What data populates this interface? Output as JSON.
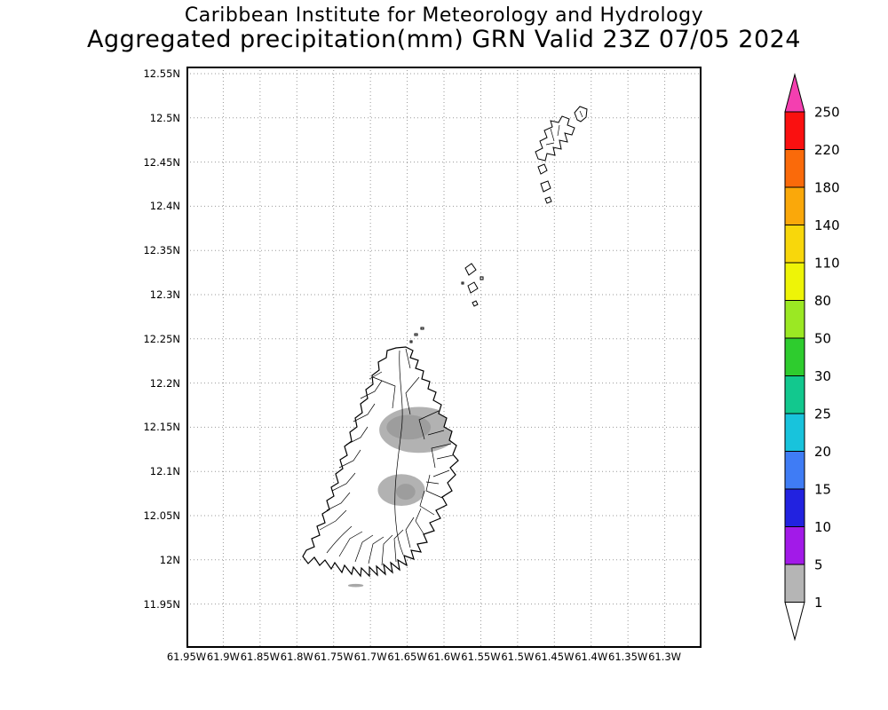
{
  "title": {
    "line1": "Caribbean Institute for Meteorology and Hydrology",
    "line2": "Aggregated precipitation(mm) GRN Valid 23Z 07/05 2024"
  },
  "map": {
    "y_axis_labels": [
      "12.55N",
      "12.5N",
      "12.45N",
      "12.4N",
      "12.35N",
      "12.3N",
      "12.25N",
      "12.2N",
      "12.15N",
      "12.1N",
      "12.05N",
      "12N",
      "11.95N"
    ],
    "x_axis_labels": [
      "61.95W",
      "61.9W",
      "61.85W",
      "61.8W",
      "61.75W",
      "61.7W",
      "61.65W",
      "61.6W",
      "61.55W",
      "61.5W",
      "61.45W",
      "61.4W",
      "61.35W",
      "61.3W"
    ],
    "grid_color": "#999999",
    "frame_color": "#000000",
    "land_color": "#ffffff",
    "coast_color": "#000000"
  },
  "legend": {
    "labels": [
      "250",
      "220",
      "180",
      "140",
      "110",
      "80",
      "50",
      "30",
      "25",
      "20",
      "15",
      "10",
      "5",
      "1"
    ],
    "segment_colors": [
      "#fa1010",
      "#fa6a0a",
      "#faa80a",
      "#f8d70b",
      "#eef407",
      "#9be823",
      "#2ecc2e",
      "#12c88e",
      "#18c3dc",
      "#3f7cf5",
      "#2222e0",
      "#a21ae8",
      "#b5b5b5"
    ],
    "arrow_top_color": "#f43fb0",
    "arrow_bottom_color": "#ffffff"
  },
  "chart_data": {
    "type": "heatmap",
    "title": "Aggregated precipitation(mm) GRN Valid 23Z 07/05 2024",
    "region_code": "GRN",
    "valid_time": "23Z 07/05 2024",
    "units": "mm",
    "lat_ticks_n": [
      12.55,
      12.5,
      12.45,
      12.4,
      12.35,
      12.3,
      12.25,
      12.2,
      12.15,
      12.1,
      12.05,
      12.0,
      11.95
    ],
    "lon_ticks_w": [
      61.95,
      61.9,
      61.85,
      61.8,
      61.75,
      61.7,
      61.65,
      61.6,
      61.55,
      61.5,
      61.45,
      61.4,
      61.35,
      61.3
    ],
    "scale_mm": [
      1,
      5,
      10,
      15,
      20,
      25,
      30,
      50,
      80,
      110,
      140,
      180,
      220,
      250
    ],
    "grid_on": true,
    "legend_position": "right",
    "shaded_areas": [
      {
        "center_lat": 12.147,
        "center_lon_w": 61.634,
        "rx_deg": 0.054,
        "ry_deg": 0.026,
        "color": "#b2b2b2",
        "value_range_mm": "1-5",
        "clip": true
      },
      {
        "center_lat": 12.15,
        "center_lon_w": 61.648,
        "rx_deg": 0.03,
        "ry_deg": 0.014,
        "color": "#9d9d9d",
        "value_range_mm": "1-5",
        "clip": true
      },
      {
        "center_lat": 12.079,
        "center_lon_w": 61.658,
        "rx_deg": 0.032,
        "ry_deg": 0.018,
        "color": "#b2b2b2",
        "value_range_mm": "1-5",
        "clip": true
      },
      {
        "center_lat": 12.077,
        "center_lon_w": 61.652,
        "rx_deg": 0.013,
        "ry_deg": 0.009,
        "color": "#9d9d9d",
        "value_range_mm": "1-5",
        "clip": true
      },
      {
        "center_lat": 11.971,
        "center_lon_w": 61.72,
        "rx_deg": 0.0105,
        "ry_deg": 0.0018,
        "color": "#a8a8a8",
        "value_range_mm": "1-5",
        "clip": false
      }
    ]
  }
}
